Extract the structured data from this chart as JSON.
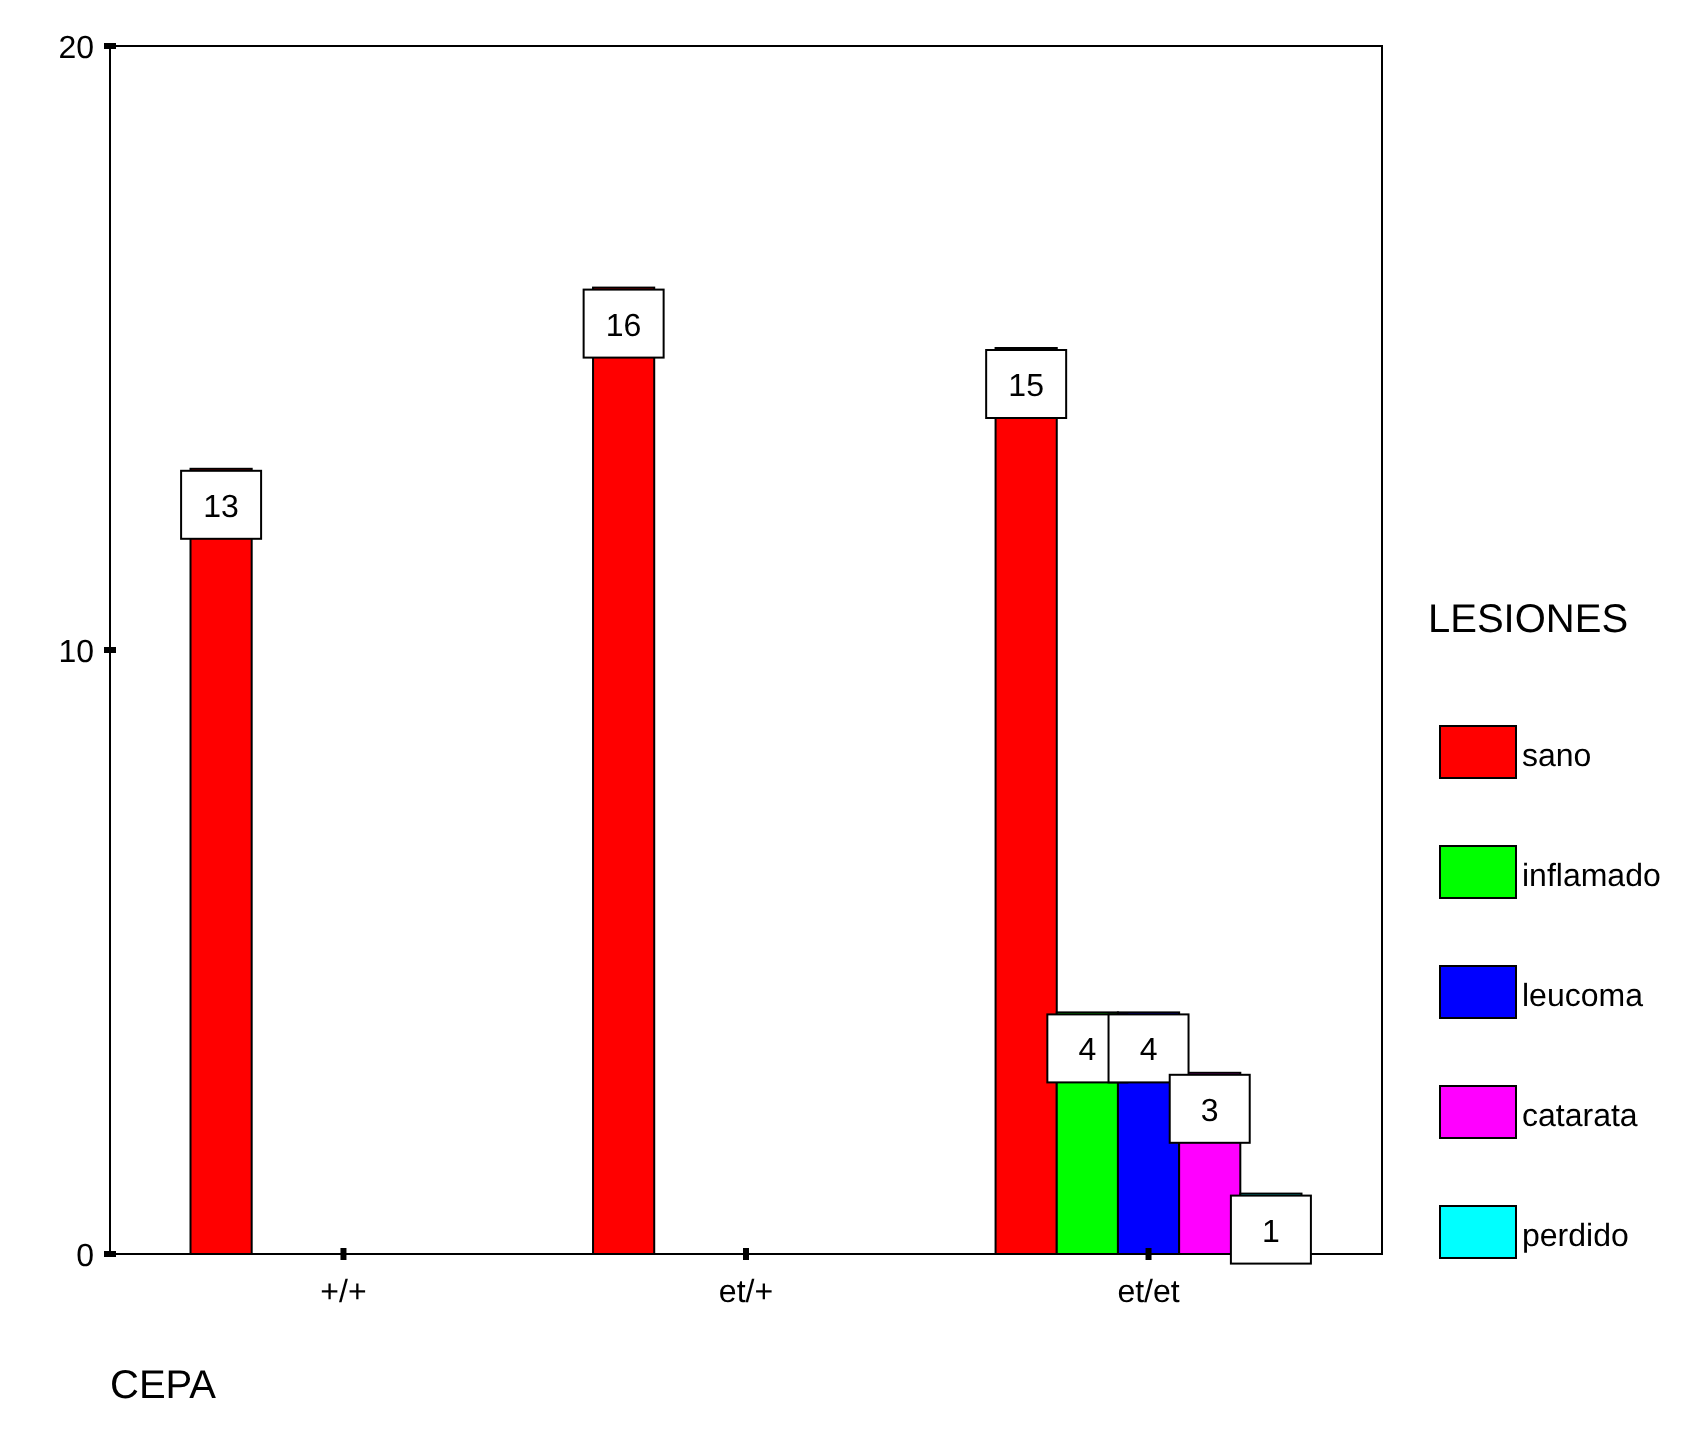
{
  "chart_data": {
    "type": "bar",
    "xlabel": "CEPA",
    "legend_title": "LESIONES",
    "categories": [
      "+/+",
      "et/+",
      "et/et"
    ],
    "series": [
      {
        "name": "sano",
        "color": "#ff0000",
        "values": [
          13,
          16,
          15
        ]
      },
      {
        "name": "inflamado",
        "color": "#00ff00",
        "values": [
          null,
          null,
          4
        ]
      },
      {
        "name": "leucoma",
        "color": "#0000ff",
        "values": [
          null,
          null,
          4
        ]
      },
      {
        "name": "catarata",
        "color": "#ff00ff",
        "values": [
          null,
          null,
          3
        ]
      },
      {
        "name": "perdido",
        "color": "#00ffff",
        "values": [
          null,
          null,
          1
        ]
      }
    ],
    "ylim": [
      0,
      20
    ],
    "yticks": [
      0,
      10,
      20
    ],
    "grid": false,
    "legend": "right",
    "data_labels": true
  }
}
